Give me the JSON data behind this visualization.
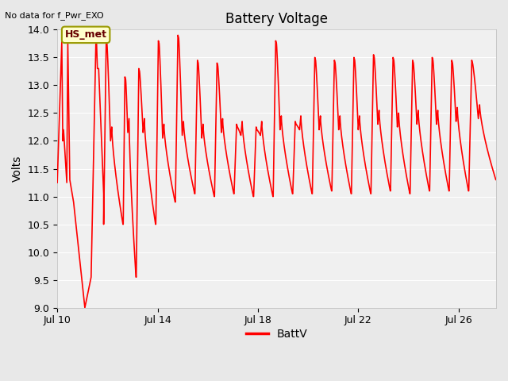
{
  "title": "Battery Voltage",
  "top_left_note": "No data for f_Pwr_EXO",
  "ylabel": "Volts",
  "legend_label": "BattV",
  "legend_color": "#ff0000",
  "line_color": "#ff0000",
  "line_width": 1.2,
  "bg_color": "#e8e8e8",
  "plot_bg_color": "#f0f0f0",
  "ylim": [
    9.0,
    14.0
  ],
  "yticks": [
    9.0,
    9.5,
    10.0,
    10.5,
    11.0,
    11.5,
    12.0,
    12.5,
    13.0,
    13.5,
    14.0
  ],
  "xtick_labels": [
    "Jul 10",
    "Jul 14",
    "Jul 18",
    "Jul 22",
    "Jul 26"
  ],
  "annotation_box": {
    "text": "HS_met",
    "facecolor": "#ffffcc",
    "edgecolor": "#999900",
    "textcolor": "#660000"
  },
  "xlim_days": 17.5,
  "xtick_day_positions": [
    0,
    4,
    8,
    12,
    16
  ]
}
